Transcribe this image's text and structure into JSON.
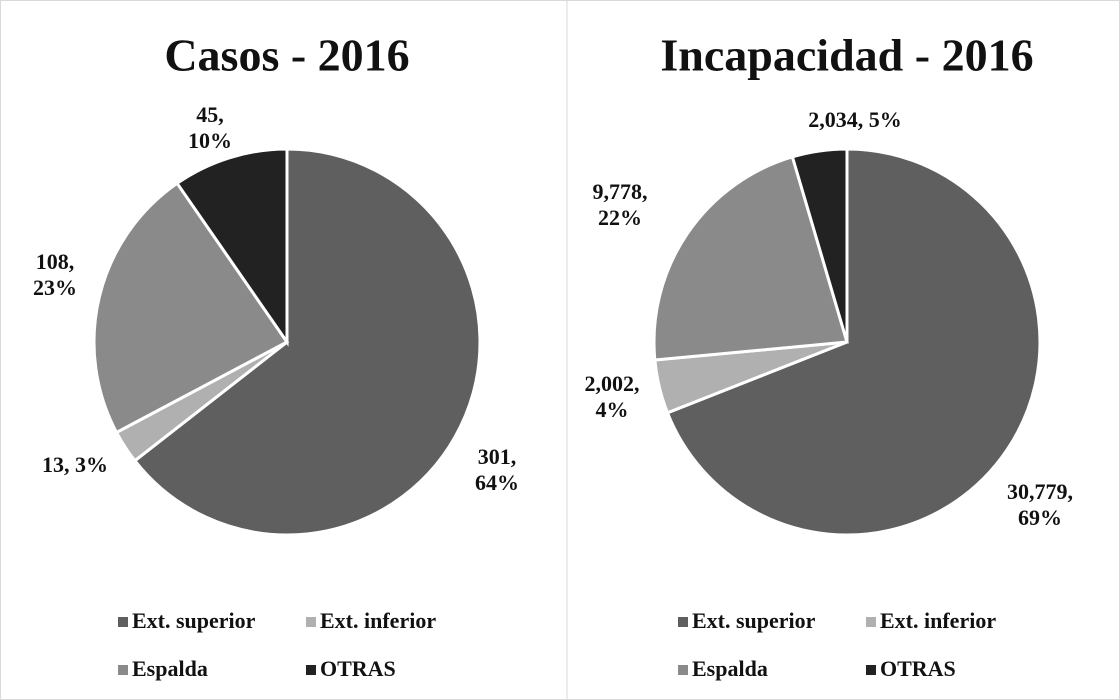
{
  "chart_data": [
    {
      "type": "pie",
      "title": "Casos - 2016",
      "categories": [
        "Ext. superior",
        "Ext. inferior",
        "Espalda",
        "OTRAS"
      ],
      "values": [
        301,
        13,
        108,
        45
      ],
      "value_labels": [
        "301, 64%",
        "13, 3%",
        "108, 23%",
        "45, 10%"
      ],
      "colors": [
        "#5f5f5f",
        "#b0b0b0",
        "#8a8a8a",
        "#222222"
      ]
    },
    {
      "type": "pie",
      "title": "Incapacidad - 2016",
      "categories": [
        "Ext. superior",
        "Ext. inferior",
        "Espalda",
        "OTRAS"
      ],
      "values": [
        30779,
        2002,
        9778,
        2034
      ],
      "value_labels": [
        "30,779, 69%",
        "2,002, 4%",
        "9,778, 22%",
        "2,034, 5%"
      ],
      "colors": [
        "#5f5f5f",
        "#b0b0b0",
        "#8a8a8a",
        "#222222"
      ]
    }
  ]
}
